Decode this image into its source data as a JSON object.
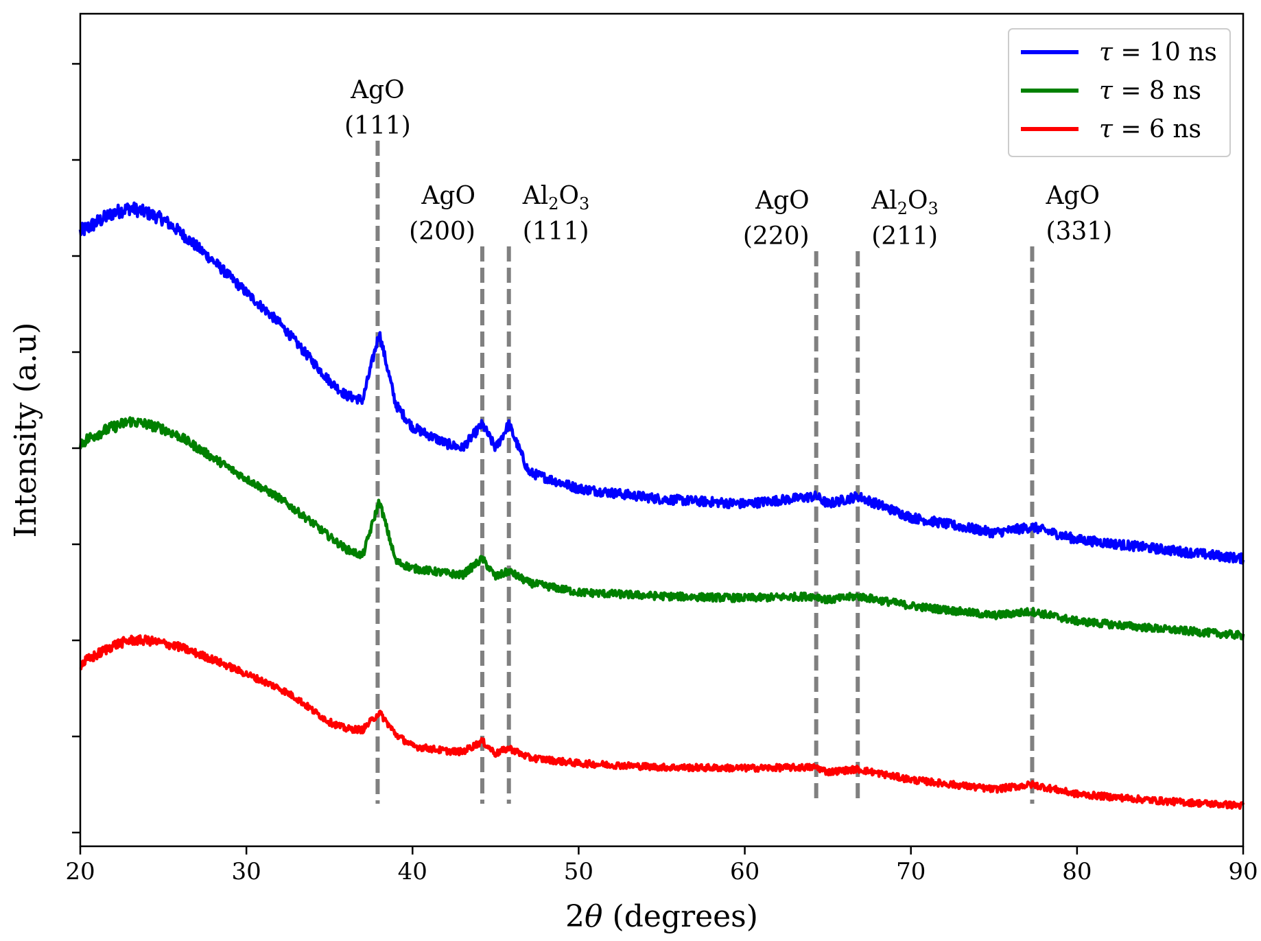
{
  "chart_data": {
    "type": "line",
    "title": "",
    "xlabel_prefix": "2",
    "xlabel_symbol": "θ",
    "xlabel_suffix": " (degrees)",
    "xlabel": "2θ (degrees)",
    "ylabel": "Intensity (a.u)",
    "xlim": [
      20,
      90
    ],
    "ylim": [
      0,
      8.5
    ],
    "x_ticks": [
      20,
      30,
      40,
      50,
      60,
      70,
      80,
      90
    ],
    "y_ticks_unlabeled": [
      0,
      1,
      2,
      3,
      4,
      5,
      6,
      7,
      8
    ],
    "legend_position": "top-right",
    "series": [
      {
        "name": "τ = 10 ns",
        "legend_symbol": "τ",
        "legend_rest": " = 10 ns",
        "color": "#0000ff",
        "x": [
          20,
          21,
          22,
          23,
          24,
          25,
          26,
          28,
          30,
          32,
          33,
          34,
          35,
          36,
          37,
          38,
          39,
          40,
          42,
          43,
          44.2,
          45,
          45.8,
          47,
          50,
          55,
          60,
          64.3,
          65,
          66.8,
          70,
          75,
          77.3,
          80,
          85,
          90
        ],
        "values": [
          6.25,
          6.35,
          6.45,
          6.5,
          6.45,
          6.38,
          6.25,
          5.95,
          5.62,
          5.3,
          5.1,
          4.9,
          4.7,
          4.55,
          4.5,
          5.2,
          4.45,
          4.22,
          4.05,
          4.0,
          4.25,
          4.0,
          4.25,
          3.75,
          3.58,
          3.47,
          3.42,
          3.5,
          3.42,
          3.5,
          3.28,
          3.12,
          3.18,
          3.05,
          2.95,
          2.85
        ],
        "noise": 0.05
      },
      {
        "name": "τ = 8 ns",
        "legend_symbol": "τ",
        "legend_rest": " = 8 ns",
        "color": "#008000",
        "x": [
          20,
          21,
          22,
          23,
          24,
          25,
          26,
          28,
          30,
          32,
          33,
          34,
          35,
          36,
          37,
          38,
          39,
          40,
          42,
          43,
          44.2,
          45,
          45.8,
          47,
          50,
          55,
          60,
          64.3,
          65,
          66.8,
          70,
          75,
          77.3,
          80,
          85,
          90
        ],
        "values": [
          4.05,
          4.15,
          4.22,
          4.28,
          4.25,
          4.2,
          4.12,
          3.9,
          3.68,
          3.48,
          3.35,
          3.22,
          3.08,
          2.95,
          2.88,
          3.45,
          2.82,
          2.75,
          2.7,
          2.68,
          2.85,
          2.66,
          2.72,
          2.6,
          2.5,
          2.46,
          2.44,
          2.46,
          2.42,
          2.46,
          2.36,
          2.26,
          2.3,
          2.2,
          2.12,
          2.05
        ],
        "noise": 0.04
      },
      {
        "name": "τ = 6 ns",
        "legend_symbol": "τ",
        "legend_rest": " = 6 ns",
        "color": "#ff0000",
        "x": [
          20,
          21,
          22,
          23,
          24,
          25,
          26,
          28,
          30,
          32,
          33,
          34,
          35,
          36,
          37,
          38,
          39,
          40,
          42,
          43,
          44.2,
          45,
          45.8,
          47,
          50,
          55,
          60,
          64.3,
          65,
          66.8,
          70,
          75,
          77.3,
          80,
          85,
          90
        ],
        "values": [
          1.75,
          1.85,
          1.95,
          2.0,
          2.0,
          1.97,
          1.93,
          1.8,
          1.65,
          1.5,
          1.4,
          1.27,
          1.15,
          1.08,
          1.07,
          1.25,
          1.02,
          0.9,
          0.85,
          0.84,
          0.95,
          0.82,
          0.88,
          0.78,
          0.72,
          0.68,
          0.67,
          0.68,
          0.63,
          0.66,
          0.55,
          0.45,
          0.5,
          0.4,
          0.33,
          0.28
        ],
        "noise": 0.035
      }
    ],
    "reference_lines": [
      {
        "x": 37.9,
        "compound": "AgO",
        "hkl": "(111)",
        "y_top": 7.2
      },
      {
        "x": 44.2,
        "compound": "AgO",
        "hkl": "(200)",
        "y_top": 6.1
      },
      {
        "x": 45.8,
        "compound": "Al2O3",
        "hkl": "(111)",
        "y_top": 6.1
      },
      {
        "x": 64.3,
        "compound": "AgO",
        "hkl": "(220)",
        "y_top": 6.05
      },
      {
        "x": 66.8,
        "compound": "Al2O3",
        "hkl": "(211)",
        "y_top": 6.05
      },
      {
        "x": 77.3,
        "compound": "AgO",
        "hkl": "(331)",
        "y_top": 6.1
      }
    ],
    "reference_line_color": "#808080"
  }
}
